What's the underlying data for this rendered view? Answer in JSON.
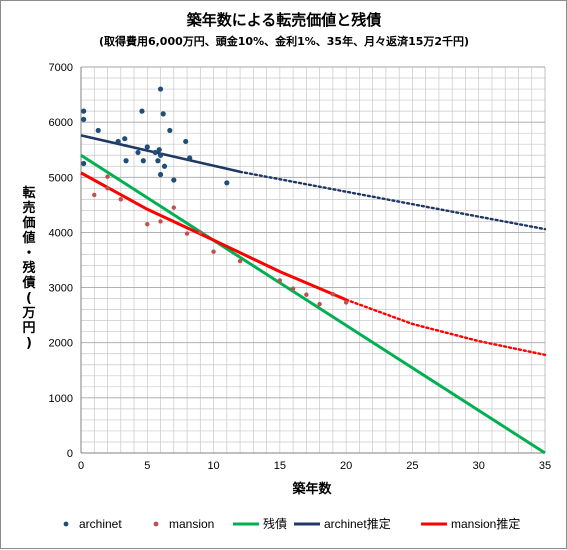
{
  "chart_data": {
    "type": "scatter",
    "title": "築年数による転売価値と残債",
    "subtitle": "(取得費用6,000万円、頭金10%、金利1%、35年、月々返済15万2千円)",
    "xlabel": "築年数",
    "ylabel_chars": [
      "転",
      "売",
      "価",
      "値",
      "・",
      "残",
      "債",
      "(",
      "万",
      "円",
      ")"
    ],
    "xlim": [
      0,
      35
    ],
    "ylim": [
      0,
      7000
    ],
    "x_ticks": [
      0,
      5,
      10,
      15,
      20,
      25,
      30,
      35
    ],
    "y_ticks": [
      0,
      1000,
      2000,
      3000,
      4000,
      5000,
      6000,
      7000
    ],
    "grid": true,
    "legend_position": "bottom",
    "colors": {
      "archinet": "#1f4e79",
      "mansion": "#c0504d",
      "remaining_debt": "#00b050",
      "archinet_fit": "#1f3864",
      "mansion_fit": "#ff0000",
      "grid": "#c8c8c8"
    },
    "series": [
      {
        "name": "archinet",
        "kind": "points",
        "points": [
          [
            0.2,
            6200
          ],
          [
            0.2,
            6050
          ],
          [
            0.2,
            5250
          ],
          [
            1.3,
            5850
          ],
          [
            2.8,
            5650
          ],
          [
            3.3,
            5700
          ],
          [
            3.4,
            5300
          ],
          [
            4.3,
            5450
          ],
          [
            4.6,
            6200
          ],
          [
            4.7,
            5300
          ],
          [
            5.0,
            5550
          ],
          [
            5.6,
            5450
          ],
          [
            5.8,
            5300
          ],
          [
            5.9,
            5500
          ],
          [
            6.0,
            5400
          ],
          [
            6.0,
            5050
          ],
          [
            6.0,
            6600
          ],
          [
            6.2,
            6150
          ],
          [
            6.3,
            5200
          ],
          [
            6.7,
            5850
          ],
          [
            7.0,
            4950
          ],
          [
            7.9,
            5650
          ],
          [
            8.2,
            5350
          ],
          [
            11.0,
            4900
          ]
        ]
      },
      {
        "name": "mansion",
        "kind": "points",
        "points": [
          [
            1.0,
            4680
          ],
          [
            2.0,
            4800
          ],
          [
            2.0,
            5010
          ],
          [
            3.0,
            4600
          ],
          [
            5.0,
            4150
          ],
          [
            6.0,
            4200
          ],
          [
            7.0,
            4450
          ],
          [
            8.0,
            3980
          ],
          [
            9.0,
            4000
          ],
          [
            10.0,
            3650
          ],
          [
            12.0,
            3480
          ],
          [
            15.0,
            3130
          ],
          [
            16.0,
            2980
          ],
          [
            17.0,
            2870
          ],
          [
            18.0,
            2700
          ],
          [
            19.0,
            2880
          ],
          [
            20.0,
            2730
          ]
        ]
      },
      {
        "name": "残債",
        "kind": "line",
        "x": [
          0,
          35
        ],
        "values": [
          5400,
          0
        ]
      },
      {
        "name": "archinet推定",
        "kind": "line",
        "x": [
          0,
          12
        ],
        "values": [
          5760,
          5100
        ]
      },
      {
        "name": "mansion推定",
        "kind": "line",
        "x": [
          0,
          5,
          10,
          15,
          20
        ],
        "values": [
          5080,
          4420,
          3860,
          3290,
          2780
        ]
      }
    ],
    "extrapolations": [
      {
        "series": "archinet推定",
        "x": [
          12,
          35
        ],
        "values": [
          5100,
          4060
        ]
      },
      {
        "series": "mansion推定",
        "x": [
          20,
          25,
          30,
          35
        ],
        "values": [
          2780,
          2340,
          2030,
          1780
        ]
      }
    ]
  }
}
